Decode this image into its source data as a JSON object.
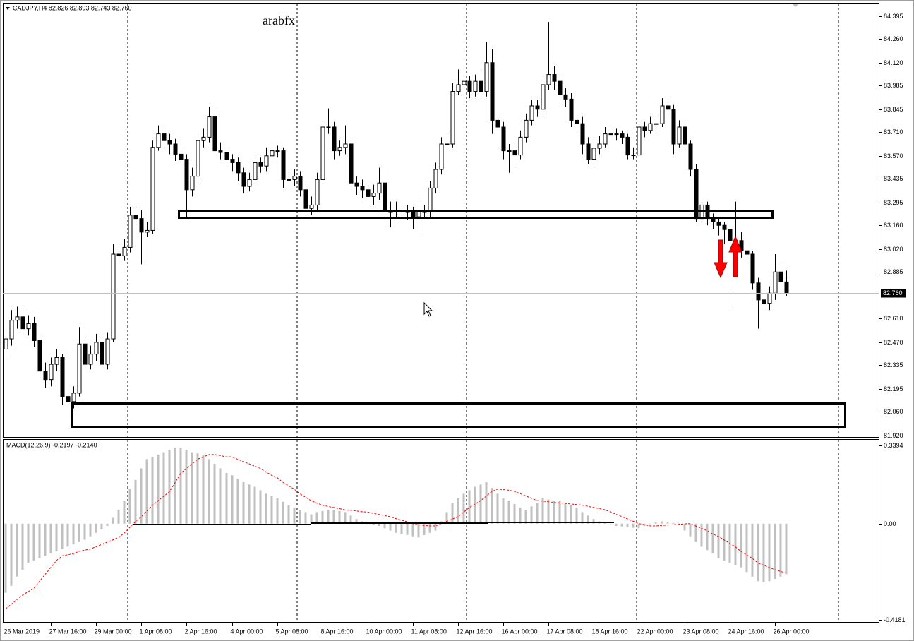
{
  "chart_data": [
    {
      "type": "candlestick",
      "title": "CADJPY,H4  82.826 82.893 82.743 82.760",
      "annotation": "arabfx",
      "color_up": "#ffffff",
      "color_down": "#000000",
      "wick_color": "#000000",
      "xlim": [
        -0.5,
        154.5
      ],
      "xticks": [
        {
          "value": 0,
          "label": "26 Mar 2019"
        },
        {
          "value": 8,
          "label": "27 Mar 16:00"
        },
        {
          "value": 16,
          "label": "29 Mar 00:00"
        },
        {
          "value": 24,
          "label": "1 Apr 08:00"
        },
        {
          "value": 32,
          "label": "2 Apr 16:00"
        },
        {
          "value": 40,
          "label": "4 Apr 00:00"
        },
        {
          "value": 48,
          "label": "5 Apr 08:00"
        },
        {
          "value": 56,
          "label": "8 Apr 16:00"
        },
        {
          "value": 64,
          "label": "10 Apr 00:00"
        },
        {
          "value": 72,
          "label": "11 Apr 08:00"
        },
        {
          "value": 80,
          "label": "12 Apr 16:00"
        },
        {
          "value": 88,
          "label": "16 Apr 00:00"
        },
        {
          "value": 96,
          "label": "17 Apr 08:00"
        },
        {
          "value": 104,
          "label": "18 Apr 16:00"
        },
        {
          "value": 112,
          "label": "22 Apr 00:00"
        },
        {
          "value": 120,
          "label": "23 Apr 08:00"
        },
        {
          "value": 128,
          "label": "24 Apr 16:00"
        },
        {
          "value": 136,
          "label": "26 Apr 00:00"
        }
      ],
      "ylim": [
        81.907,
        84.469
      ],
      "yticks": [
        84.395,
        {
          "value": 84.26,
          "label": "84.260"
        },
        {
          "value": 84.12,
          "label": "84.120"
        },
        83.985,
        83.845,
        {
          "value": 83.71,
          "label": "83.710"
        },
        {
          "value": 83.57,
          "label": "83.570"
        },
        83.435,
        83.295,
        {
          "value": 83.16,
          "label": "83.160"
        },
        {
          "value": 83.02,
          "label": "83.020"
        },
        82.885,
        {
          "value": 82.61,
          "label": "82.610"
        },
        {
          "value": 82.47,
          "label": "82.470"
        },
        82.335,
        82.195,
        {
          "value": 82.06,
          "label": "82.060"
        },
        {
          "value": 81.92,
          "label": "81.920"
        }
      ],
      "last_price": {
        "value": 82.76,
        "label": "82.760"
      },
      "open": [
        82.43,
        82.49,
        82.6,
        82.62,
        82.55,
        82.58,
        82.48,
        82.3,
        82.25,
        82.34,
        82.38,
        82.15,
        82.12,
        82.17,
        82.46,
        82.34,
        82.4,
        82.47,
        82.34,
        82.49,
        82.99,
        82.98,
        83.03,
        83.22,
        83.2,
        83.12,
        83.13,
        83.62,
        83.7,
        83.66,
        83.64,
        83.58,
        83.55,
        83.37,
        83.45,
        83.66,
        83.68,
        83.8,
        83.6,
        83.59,
        83.55,
        83.53,
        83.47,
        83.39,
        83.43,
        83.53,
        83.51,
        83.57,
        83.6,
        83.6,
        83.43,
        83.43,
        83.45,
        83.37,
        83.26,
        83.28,
        83.43,
        83.74,
        83.74,
        83.6,
        83.62,
        83.64,
        83.41,
        83.39,
        83.37,
        83.33,
        83.35,
        83.41,
        83.24,
        83.24,
        83.25,
        83.24,
        83.24,
        83.21,
        83.24,
        83.24,
        83.38,
        83.49,
        83.64,
        83.64,
        83.95,
        83.99,
        84.01,
        83.95,
        84.01,
        83.95,
        84.12,
        83.78,
        83.74,
        83.6,
        83.6,
        83.575,
        83.68,
        83.78,
        83.865,
        83.845,
        83.99,
        84.05,
        84.01,
        83.93,
        83.905,
        83.78,
        83.76,
        83.64,
        83.55,
        83.615,
        83.64,
        83.7,
        83.7,
        83.7,
        83.68,
        83.575,
        83.575,
        83.74,
        83.72,
        83.76,
        83.76,
        83.865,
        83.845,
        83.64,
        83.74,
        83.64,
        83.49,
        83.2,
        83.28,
        83.2,
        83.18,
        83.16,
        83.135,
        83.07,
        83.07,
        83.01,
        82.99,
        82.82,
        82.72,
        82.7,
        82.76,
        82.885,
        82.826
      ],
      "high": [
        82.55,
        82.66,
        82.68,
        82.66,
        82.63,
        82.62,
        82.52,
        82.35,
        82.38,
        82.43,
        82.4,
        82.22,
        82.21,
        82.56,
        82.5,
        82.45,
        82.52,
        82.5,
        82.53,
        83.05,
        83.05,
        83.08,
        83.27,
        83.27,
        83.25,
        83.18,
        83.66,
        83.75,
        83.73,
        83.7,
        83.67,
        83.62,
        83.58,
        83.5,
        83.7,
        83.73,
        83.86,
        83.83,
        83.65,
        83.62,
        83.58,
        83.56,
        83.5,
        83.47,
        83.58,
        83.56,
        83.62,
        83.64,
        83.63,
        83.62,
        83.48,
        83.49,
        83.48,
        83.4,
        83.33,
        83.47,
        83.78,
        83.85,
        83.77,
        83.66,
        83.75,
        83.67,
        83.45,
        83.43,
        83.41,
        83.4,
        83.5,
        83.49,
        83.3,
        83.3,
        83.28,
        83.28,
        83.27,
        83.3,
        83.28,
        83.42,
        83.53,
        83.68,
        83.7,
        84.0,
        84.08,
        84.08,
        84.04,
        84.05,
        84.06,
        84.24,
        84.2,
        83.82,
        83.77,
        83.64,
        83.63,
        83.72,
        83.82,
        83.9,
        83.9,
        84.03,
        84.36,
        84.1,
        84.05,
        83.97,
        83.94,
        83.82,
        83.8,
        83.68,
        83.66,
        83.69,
        83.74,
        83.74,
        83.73,
        83.72,
        83.7,
        83.62,
        83.78,
        83.77,
        83.8,
        83.8,
        83.91,
        83.9,
        83.87,
        83.78,
        83.76,
        83.66,
        83.52,
        83.32,
        83.3,
        83.23,
        83.2,
        83.18,
        83.15,
        83.3,
        83.12,
        83.05,
        83.01,
        82.85,
        82.76,
        82.8,
        82.99,
        82.93,
        82.893
      ],
      "low": [
        82.38,
        82.45,
        82.55,
        82.5,
        82.51,
        82.44,
        82.26,
        82.2,
        82.21,
        82.3,
        82.1,
        82.03,
        82.08,
        82.15,
        82.3,
        82.31,
        82.36,
        82.31,
        82.31,
        82.47,
        82.93,
        82.95,
        83.0,
        83.16,
        82.93,
        83.09,
        83.11,
        83.6,
        83.62,
        83.58,
        83.54,
        83.5,
        83.2,
        83.33,
        83.42,
        83.62,
        83.65,
        83.56,
        83.55,
        83.5,
        83.48,
        83.42,
        83.35,
        83.36,
        83.4,
        83.47,
        83.48,
        83.54,
        83.56,
        83.38,
        83.38,
        83.39,
        83.33,
        83.2,
        83.22,
        83.24,
        83.4,
        83.7,
        83.55,
        83.57,
        83.58,
        83.36,
        83.34,
        83.32,
        83.28,
        83.28,
        83.31,
        83.15,
        83.15,
        83.2,
        83.2,
        83.19,
        83.14,
        83.1,
        83.2,
        83.21,
        83.35,
        83.46,
        83.6,
        83.62,
        83.93,
        83.96,
        83.91,
        83.92,
        83.9,
        83.92,
        83.7,
        83.6,
        83.55,
        83.47,
        83.52,
        83.55,
        83.65,
        83.75,
        83.8,
        83.82,
        83.96,
        83.96,
        83.88,
        83.86,
        83.74,
        83.7,
        83.58,
        83.52,
        83.52,
        83.58,
        83.62,
        83.66,
        83.66,
        83.64,
        83.55,
        83.55,
        83.56,
        83.68,
        83.7,
        83.72,
        83.74,
        83.8,
        83.58,
        83.62,
        83.6,
        83.45,
        83.18,
        83.17,
        83.16,
        83.14,
        83.1,
        83.05,
        82.66,
        83.02,
        82.97,
        82.93,
        82.78,
        82.55,
        82.66,
        82.66,
        82.72,
        82.78,
        82.743
      ],
      "close": [
        82.49,
        82.6,
        82.62,
        82.55,
        82.58,
        82.48,
        82.3,
        82.25,
        82.34,
        82.38,
        82.15,
        82.12,
        82.17,
        82.46,
        82.34,
        82.4,
        82.47,
        82.34,
        82.49,
        82.99,
        82.98,
        83.03,
        83.22,
        83.2,
        83.12,
        83.13,
        83.62,
        83.7,
        83.66,
        83.64,
        83.58,
        83.55,
        83.37,
        83.45,
        83.66,
        83.68,
        83.8,
        83.6,
        83.59,
        83.55,
        83.53,
        83.47,
        83.39,
        83.43,
        83.53,
        83.51,
        83.57,
        83.6,
        83.6,
        83.43,
        83.43,
        83.45,
        83.37,
        83.26,
        83.28,
        83.43,
        83.74,
        83.74,
        83.6,
        83.62,
        83.64,
        83.41,
        83.39,
        83.37,
        83.33,
        83.35,
        83.41,
        83.24,
        83.24,
        83.25,
        83.24,
        83.24,
        83.21,
        83.24,
        83.24,
        83.38,
        83.49,
        83.64,
        83.64,
        83.95,
        83.99,
        84.01,
        83.95,
        84.01,
        83.95,
        84.12,
        83.78,
        83.74,
        83.6,
        83.6,
        83.575,
        83.68,
        83.78,
        83.865,
        83.845,
        83.99,
        84.05,
        84.01,
        83.93,
        83.905,
        83.78,
        83.76,
        83.64,
        83.55,
        83.615,
        83.64,
        83.7,
        83.7,
        83.7,
        83.68,
        83.575,
        83.575,
        83.74,
        83.72,
        83.76,
        83.76,
        83.865,
        83.845,
        83.64,
        83.74,
        83.64,
        83.49,
        83.2,
        83.28,
        83.2,
        83.18,
        83.16,
        83.135,
        83.07,
        83.07,
        83.01,
        82.99,
        82.82,
        82.72,
        82.7,
        82.76,
        82.885,
        82.826,
        82.76
      ]
    },
    {
      "type": "macd",
      "title": "MACD(12,26,9) -0.2197 -0.2140",
      "histogram_color": "#c0c0c0",
      "signal_color": "#ff0000",
      "ylim": [
        -0.43,
        0.364
      ],
      "yticks": [
        0.3394,
        {
          "value": 0,
          "label": "0.00"
        },
        -0.4181
      ],
      "histogram": [
        -0.3,
        -0.27,
        -0.23,
        -0.2,
        -0.17,
        -0.16,
        -0.15,
        -0.14,
        -0.13,
        -0.12,
        -0.11,
        -0.1,
        -0.09,
        -0.08,
        -0.07,
        -0.055,
        -0.04,
        -0.025,
        -0.01,
        0.025,
        0.06,
        0.1,
        0.15,
        0.19,
        0.24,
        0.28,
        0.29,
        0.3,
        0.31,
        0.32,
        0.33,
        0.33,
        0.32,
        0.31,
        0.305,
        0.3,
        0.28,
        0.26,
        0.24,
        0.22,
        0.21,
        0.195,
        0.18,
        0.17,
        0.16,
        0.145,
        0.13,
        0.12,
        0.11,
        0.095,
        0.08,
        0.07,
        0.06,
        0.05,
        0.04,
        0.05,
        0.055,
        0.06,
        0.06,
        0.055,
        0.05,
        0.035,
        0.02,
        0.01,
        0.0,
        -0.005,
        -0.01,
        -0.02,
        -0.03,
        -0.04,
        -0.045,
        -0.05,
        -0.055,
        -0.06,
        -0.05,
        -0.04,
        -0.03,
        0.01,
        0.05,
        0.09,
        0.11,
        0.13,
        0.145,
        0.16,
        0.17,
        0.18,
        0.155,
        0.13,
        0.11,
        0.1,
        0.085,
        0.07,
        0.06,
        0.075,
        0.09,
        0.11,
        0.105,
        0.1,
        0.1,
        0.09,
        0.08,
        0.07,
        0.05,
        0.035,
        0.02,
        0.01,
        0.005,
        0.0,
        -0.01,
        -0.012,
        -0.015,
        -0.018,
        -0.02,
        -0.01,
        0.0,
        0.005,
        0.01,
        0.005,
        0.003,
        0.0,
        -0.03,
        -0.055,
        -0.08,
        -0.1,
        -0.115,
        -0.13,
        -0.15,
        -0.16,
        -0.17,
        -0.18,
        -0.19,
        -0.21,
        -0.23,
        -0.25,
        -0.255,
        -0.25,
        -0.24,
        -0.23,
        -0.2197
      ],
      "signal": [
        -0.37,
        -0.35,
        -0.33,
        -0.31,
        -0.295,
        -0.28,
        -0.25,
        -0.22,
        -0.19,
        -0.16,
        -0.14,
        -0.135,
        -0.13,
        -0.12,
        -0.115,
        -0.11,
        -0.1,
        -0.09,
        -0.08,
        -0.07,
        -0.06,
        -0.04,
        -0.015,
        0.01,
        0.03,
        0.055,
        0.08,
        0.1,
        0.12,
        0.14,
        0.18,
        0.22,
        0.24,
        0.26,
        0.28,
        0.29,
        0.3,
        0.3,
        0.295,
        0.29,
        0.29,
        0.28,
        0.27,
        0.26,
        0.25,
        0.24,
        0.225,
        0.21,
        0.2,
        0.18,
        0.165,
        0.15,
        0.13,
        0.115,
        0.1,
        0.09,
        0.08,
        0.075,
        0.07,
        0.065,
        0.06,
        0.058,
        0.055,
        0.052,
        0.05,
        0.045,
        0.04,
        0.035,
        0.03,
        0.022,
        0.015,
        0.008,
        0.0,
        -0.005,
        -0.008,
        -0.01,
        -0.01,
        0.0,
        0.01,
        0.02,
        0.03,
        0.05,
        0.07,
        0.085,
        0.1,
        0.12,
        0.14,
        0.15,
        0.148,
        0.145,
        0.14,
        0.13,
        0.12,
        0.11,
        0.1,
        0.098,
        0.095,
        0.092,
        0.09,
        0.088,
        0.085,
        0.083,
        0.08,
        0.075,
        0.07,
        0.065,
        0.06,
        0.05,
        0.04,
        0.03,
        0.02,
        0.01,
        0.0,
        -0.005,
        -0.01,
        -0.01,
        -0.008,
        -0.006,
        -0.005,
        -0.003,
        -0.001,
        0.0,
        -0.01,
        -0.02,
        -0.03,
        -0.045,
        -0.055,
        -0.07,
        -0.085,
        -0.1,
        -0.12,
        -0.135,
        -0.15,
        -0.17,
        -0.18,
        -0.19,
        -0.2,
        -0.207,
        -0.214
      ]
    }
  ]
}
